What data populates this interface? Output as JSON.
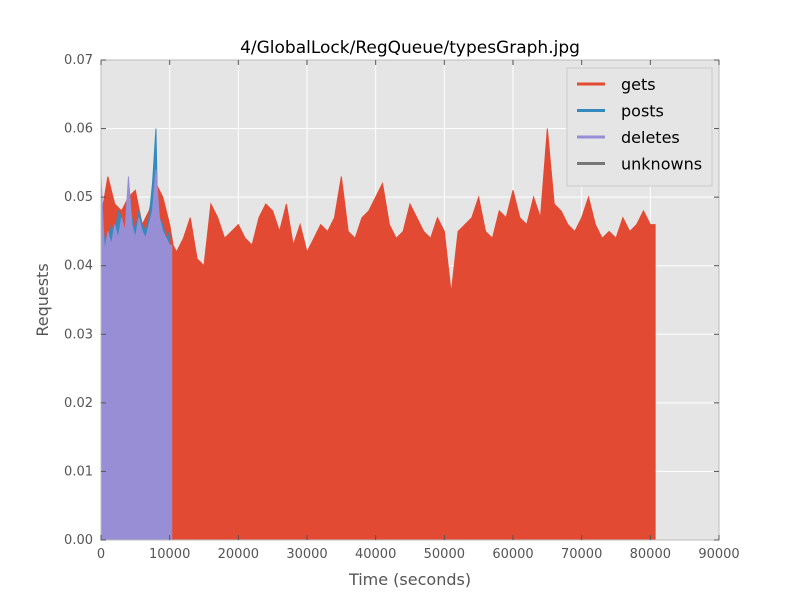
{
  "chart_data": {
    "type": "area",
    "title": "4/GlobalLock/RegQueue/typesGraph.jpg",
    "xlabel": "Time (seconds)",
    "ylabel": "Requests",
    "xlim": [
      0,
      90000
    ],
    "ylim": [
      0,
      0.07
    ],
    "xticks": [
      "0",
      "10000",
      "20000",
      "30000",
      "40000",
      "50000",
      "60000",
      "70000",
      "80000",
      "90000"
    ],
    "yticks": [
      "0.00",
      "0.01",
      "0.02",
      "0.03",
      "0.04",
      "0.05",
      "0.06",
      "0.07"
    ],
    "grid": true,
    "legend_placement": "top-right",
    "background_color": "#e5e5e5",
    "series": [
      {
        "name": "gets",
        "color": "#e24a33",
        "x": [
          0,
          1000,
          2000,
          3000,
          4000,
          5000,
          6000,
          7000,
          8000,
          9000,
          10000,
          10500,
          11000,
          12000,
          13000,
          14000,
          15000,
          16000,
          17000,
          18000,
          19000,
          20000,
          21000,
          22000,
          23000,
          24000,
          25000,
          26000,
          27000,
          28000,
          29000,
          30000,
          31000,
          32000,
          33000,
          34000,
          35000,
          36000,
          37000,
          38000,
          39000,
          40000,
          41000,
          42000,
          43000,
          44000,
          45000,
          46000,
          47000,
          48000,
          49000,
          50000,
          51000,
          52000,
          53000,
          54000,
          55000,
          56000,
          57000,
          58000,
          59000,
          60000,
          61000,
          62000,
          63000,
          64000,
          65000,
          66000,
          67000,
          68000,
          69000,
          70000,
          71000,
          72000,
          73000,
          74000,
          75000,
          76000,
          77000,
          78000,
          79000,
          80000,
          80700
        ],
        "values": [
          0.047,
          0.053,
          0.049,
          0.048,
          0.05,
          0.051,
          0.046,
          0.048,
          0.052,
          0.05,
          0.046,
          0.043,
          0.042,
          0.044,
          0.047,
          0.041,
          0.04,
          0.049,
          0.047,
          0.044,
          0.045,
          0.046,
          0.044,
          0.043,
          0.047,
          0.049,
          0.048,
          0.045,
          0.049,
          0.043,
          0.046,
          0.042,
          0.044,
          0.046,
          0.045,
          0.047,
          0.053,
          0.045,
          0.044,
          0.047,
          0.048,
          0.05,
          0.052,
          0.046,
          0.044,
          0.045,
          0.049,
          0.047,
          0.045,
          0.044,
          0.047,
          0.045,
          0.036,
          0.045,
          0.046,
          0.047,
          0.05,
          0.045,
          0.044,
          0.048,
          0.047,
          0.051,
          0.047,
          0.046,
          0.05,
          0.047,
          0.06,
          0.049,
          0.048,
          0.046,
          0.045,
          0.047,
          0.05,
          0.046,
          0.044,
          0.045,
          0.044,
          0.047,
          0.045,
          0.046,
          0.048,
          0.046,
          0.046
        ]
      },
      {
        "name": "posts",
        "color": "#348abd",
        "x": [
          0,
          500,
          1000,
          1500,
          2000,
          2500,
          3000,
          3500,
          4000,
          4500,
          5000,
          5500,
          6000,
          6500,
          7000,
          7500,
          8000,
          8200,
          8500,
          9000,
          9500,
          10000
        ],
        "values": [
          0.048,
          0.044,
          0.042,
          0.046,
          0.044,
          0.048,
          0.047,
          0.044,
          0.052,
          0.047,
          0.045,
          0.048,
          0.046,
          0.045,
          0.047,
          0.052,
          0.06,
          0.05,
          0.047,
          0.046,
          0.044,
          0.045
        ]
      },
      {
        "name": "deletes",
        "color": "#988ed5",
        "x": [
          0,
          500,
          1000,
          1500,
          2000,
          2500,
          3000,
          3500,
          4000,
          4500,
          5000,
          5500,
          6000,
          6500,
          7000,
          7500,
          8000,
          8500,
          9000,
          9500,
          10000,
          10300
        ],
        "values": [
          0.053,
          0.042,
          0.045,
          0.043,
          0.046,
          0.044,
          0.047,
          0.045,
          0.053,
          0.046,
          0.044,
          0.047,
          0.045,
          0.044,
          0.046,
          0.048,
          0.054,
          0.047,
          0.045,
          0.044,
          0.043,
          0.043
        ]
      },
      {
        "name": "unknowns",
        "color": "#777777",
        "x": [],
        "values": []
      }
    ]
  }
}
